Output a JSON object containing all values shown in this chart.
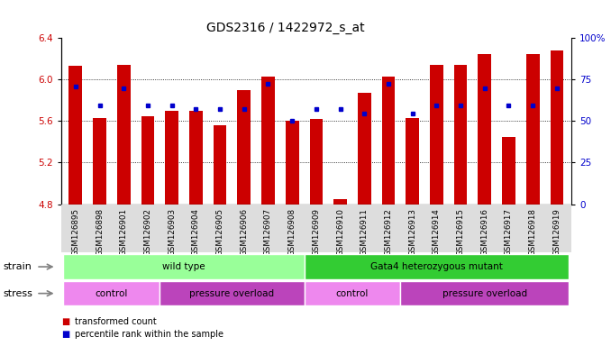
{
  "title": "GDS2316 / 1422972_s_at",
  "samples": [
    "GSM126895",
    "GSM126898",
    "GSM126901",
    "GSM126902",
    "GSM126903",
    "GSM126904",
    "GSM126905",
    "GSM126906",
    "GSM126907",
    "GSM126908",
    "GSM126909",
    "GSM126910",
    "GSM126911",
    "GSM126912",
    "GSM126913",
    "GSM126914",
    "GSM126915",
    "GSM126916",
    "GSM126917",
    "GSM126918",
    "GSM126919"
  ],
  "bar_values": [
    6.13,
    5.63,
    6.14,
    5.65,
    5.7,
    5.7,
    5.56,
    5.9,
    6.03,
    5.6,
    5.62,
    4.85,
    5.87,
    6.03,
    5.63,
    6.14,
    6.14,
    6.25,
    5.45,
    6.25,
    6.28
  ],
  "dot_values": [
    5.93,
    5.75,
    5.92,
    5.75,
    5.75,
    5.72,
    5.72,
    5.72,
    5.96,
    5.6,
    5.72,
    5.72,
    5.67,
    5.96,
    5.67,
    5.75,
    5.75,
    5.92,
    5.75,
    5.75,
    5.92
  ],
  "ylim": [
    4.8,
    6.4
  ],
  "yticks_left": [
    4.8,
    5.2,
    5.6,
    6.0,
    6.4
  ],
  "yticks_right": [
    0,
    25,
    50,
    75,
    100
  ],
  "bar_color": "#cc0000",
  "dot_color": "#0000cc",
  "strain_groups": [
    {
      "label": "wild type",
      "start": 0,
      "end": 10,
      "color": "#99ff99"
    },
    {
      "label": "Gata4 heterozygous mutant",
      "start": 10,
      "end": 21,
      "color": "#33cc33"
    }
  ],
  "stress_groups": [
    {
      "label": "control",
      "start": 0,
      "end": 4,
      "color": "#ee88ee"
    },
    {
      "label": "pressure overload",
      "start": 4,
      "end": 10,
      "color": "#bb44bb"
    },
    {
      "label": "control",
      "start": 10,
      "end": 14,
      "color": "#ee88ee"
    },
    {
      "label": "pressure overload",
      "start": 14,
      "end": 21,
      "color": "#bb44bb"
    }
  ],
  "legend_items": [
    {
      "label": "transformed count",
      "color": "#cc0000"
    },
    {
      "label": "percentile rank within the sample",
      "color": "#0000cc"
    }
  ],
  "title_fontsize": 10,
  "tick_fontsize": 7.5,
  "row_label_fontsize": 8,
  "bar_label_fontsize": 7.5
}
